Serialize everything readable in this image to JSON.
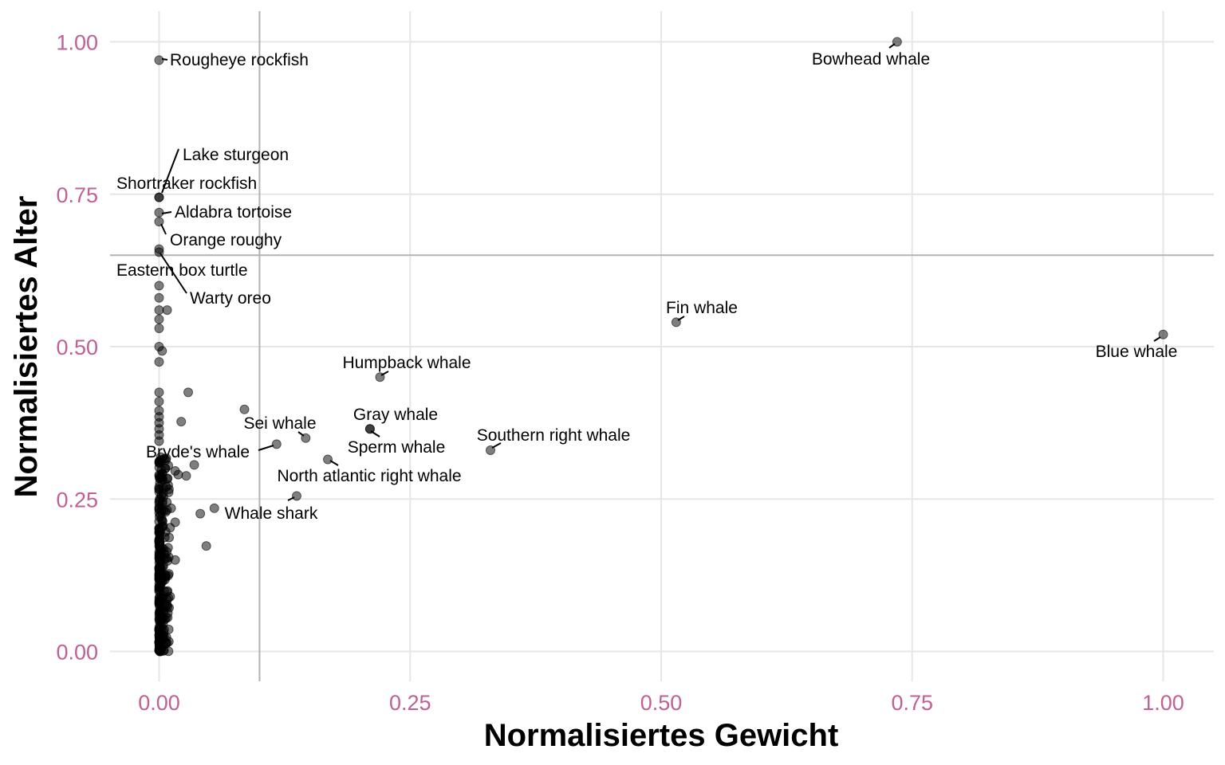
{
  "chart_data": {
    "type": "scatter",
    "title": "",
    "xlabel": "Normalisiertes Gewicht",
    "ylabel": "Normalisiertes Alter",
    "xlim": [
      -0.05,
      1.05
    ],
    "ylim": [
      -0.05,
      1.05
    ],
    "x_ticks": [
      "0.00",
      "0.25",
      "0.50",
      "0.75",
      "1.00"
    ],
    "y_ticks": [
      "0.00",
      "0.25",
      "0.50",
      "0.75",
      "1.00"
    ],
    "grid": true,
    "reference_lines": {
      "vertical_x": 0.1,
      "horizontal_y": 0.65
    },
    "colors": {
      "tick_labels": "#c06095",
      "points": "#000000",
      "grid": "#e6e6e6",
      "reference": "#b3b3b3"
    },
    "labeled_points": [
      {
        "name": "Bowhead whale",
        "x": 0.735,
        "y": 1.0
      },
      {
        "name": "Rougheye rockfish",
        "x": 0.0,
        "y": 0.97
      },
      {
        "name": "Lake sturgeon",
        "x": 0.0,
        "y": 0.745
      },
      {
        "name": "Shortraker rockfish",
        "x": 0.0,
        "y": 0.745
      },
      {
        "name": "Aldabra tortoise",
        "x": 0.0,
        "y": 0.72
      },
      {
        "name": "Orange roughy",
        "x": 0.0,
        "y": 0.705
      },
      {
        "name": "Eastern box turtle",
        "x": 0.0,
        "y": 0.66
      },
      {
        "name": "Warty oreo",
        "x": 0.0,
        "y": 0.655
      },
      {
        "name": "Fin whale",
        "x": 0.515,
        "y": 0.54
      },
      {
        "name": "Blue whale",
        "x": 1.0,
        "y": 0.52
      },
      {
        "name": "Humpback whale",
        "x": 0.22,
        "y": 0.45
      },
      {
        "name": "Gray whale",
        "x": 0.21,
        "y": 0.365
      },
      {
        "name": "Sperm whale",
        "x": 0.21,
        "y": 0.365
      },
      {
        "name": "Sei whale",
        "x": 0.146,
        "y": 0.35
      },
      {
        "name": "Southern right whale",
        "x": 0.33,
        "y": 0.33
      },
      {
        "name": "Bryde's whale",
        "x": 0.117,
        "y": 0.34
      },
      {
        "name": "North atlantic right whale",
        "x": 0.168,
        "y": 0.315
      },
      {
        "name": "Whale shark",
        "x": 0.137,
        "y": 0.255
      }
    ],
    "other_points": [
      {
        "x": 0.085,
        "y": 0.397
      },
      {
        "x": 0.029,
        "y": 0.425
      },
      {
        "x": 0.022,
        "y": 0.377
      },
      {
        "x": 0.035,
        "y": 0.306
      },
      {
        "x": 0.027,
        "y": 0.288
      },
      {
        "x": 0.016,
        "y": 0.296
      },
      {
        "x": 0.019,
        "y": 0.29
      },
      {
        "x": 0.055,
        "y": 0.235
      },
      {
        "x": 0.041,
        "y": 0.226
      },
      {
        "x": 0.047,
        "y": 0.173
      },
      {
        "x": 0.008,
        "y": 0.56
      },
      {
        "x": 0.003,
        "y": 0.493
      },
      {
        "x": 0.012,
        "y": 0.235
      },
      {
        "x": 0.016,
        "y": 0.212
      },
      {
        "x": 0.011,
        "y": 0.203
      },
      {
        "x": 0.01,
        "y": 0.187
      },
      {
        "x": 0.016,
        "y": 0.15
      },
      {
        "x": 0.011,
        "y": 0.09
      },
      {
        "x": 0.007,
        "y": 0.27
      },
      {
        "x": 0.008,
        "y": 0.283
      },
      {
        "x": 0.006,
        "y": 0.3
      },
      {
        "x": 0.0,
        "y": 0.6
      },
      {
        "x": 0.0,
        "y": 0.58
      },
      {
        "x": 0.0,
        "y": 0.56
      },
      {
        "x": 0.0,
        "y": 0.545
      },
      {
        "x": 0.0,
        "y": 0.53
      },
      {
        "x": 0.0,
        "y": 0.5
      },
      {
        "x": 0.0,
        "y": 0.475
      },
      {
        "x": 0.0,
        "y": 0.425
      },
      {
        "x": 0.0,
        "y": 0.41
      },
      {
        "x": 0.0,
        "y": 0.395
      },
      {
        "x": 0.0,
        "y": 0.385
      },
      {
        "x": 0.0,
        "y": 0.375
      },
      {
        "x": 0.0,
        "y": 0.365
      },
      {
        "x": 0.0,
        "y": 0.355
      },
      {
        "x": 0.0,
        "y": 0.345
      }
    ],
    "dense_cluster": {
      "x_range": [
        0.0,
        0.01
      ],
      "y_range": [
        0.0,
        0.33
      ]
    }
  }
}
